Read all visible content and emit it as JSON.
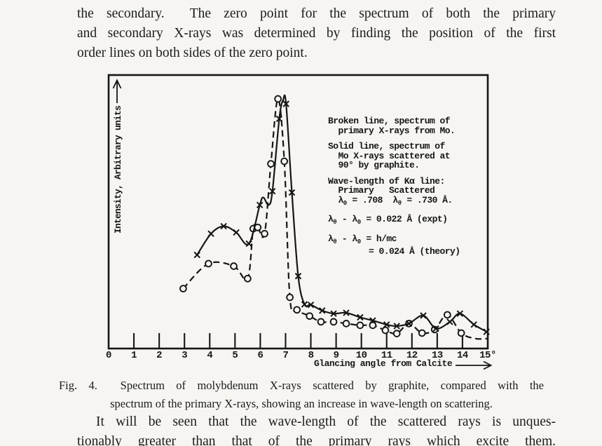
{
  "page": {
    "bg": "#f6f5f1",
    "ink": "#161616"
  },
  "paragraphs": {
    "top": [
      "the secondary.  The zero point for the spectrum of both the primary",
      "and secondary X-rays was determined by finding the position of the first",
      "order lines on both sides of the zero point."
    ],
    "bottom": [
      "It will be seen that the wave-length of the scattered rays is unques-",
      "tionably greater than that of the primary rays which excite them."
    ]
  },
  "figure": {
    "caption": [
      "Fig. 4.  Spectrum of molybdenum X-rays scattered by graphite, compared with the",
      "spectrum of the primary X-rays, showing an increase in wave-length on scattering."
    ],
    "legend_blocks": [
      [
        "Broken line, spectrum of",
        "  primary X-rays from Mo."
      ],
      [
        "Solid line, spectrum of",
        "  Mo X-rays scattered at",
        "  90° by graphite."
      ],
      [
        "Wave-length of Kα line:",
        "  Primary   Scattered",
        "  λ_{0} = .708  λ_{θ} = .730 Å."
      ],
      [
        "λ_{θ} - λ_{0} = 0.022 Å (expt)"
      ],
      [
        "λ_{θ} - λ_{0} = h/mc",
        "        = 0.024 Å (theory)"
      ]
    ]
  },
  "chart_data": {
    "type": "line",
    "title": "",
    "xlabel": "Glancing angle from Calcite",
    "ylabel": "Intensity, Arbitrary units",
    "xlim": [
      0,
      15
    ],
    "ylim": [
      0,
      105
    ],
    "grid": false,
    "x_ticks": [
      0,
      1,
      2,
      3,
      4,
      5,
      6,
      7,
      8,
      9,
      10,
      11,
      12,
      13,
      14,
      15
    ],
    "x_tick_labels": [
      "0",
      "1",
      "2",
      "3",
      "4",
      "5",
      "6",
      "7",
      "8",
      "9",
      "10",
      "11",
      "12",
      "13",
      "14",
      "15°"
    ],
    "y_ticks": "none (arbitrary units)",
    "legend_position": "text block inside plot, upper right",
    "series": [
      {
        "name": "Broken line: spectrum of primary X-rays from Mo",
        "line": "dashed",
        "marker": "circle",
        "points": [
          [
            2.95,
            24,
            1
          ],
          [
            3.95,
            34,
            1
          ],
          [
            4.95,
            33,
            1
          ],
          [
            5.5,
            28,
            1
          ],
          [
            5.72,
            48,
            1
          ],
          [
            5.9,
            48.5,
            1
          ],
          [
            6.17,
            46,
            1
          ],
          [
            6.42,
            74,
            1
          ],
          [
            6.7,
            100,
            1
          ],
          [
            6.95,
            75,
            1
          ],
          [
            7.17,
            20.5,
            1
          ],
          [
            7.45,
            15.5,
            1
          ],
          [
            7.95,
            13,
            1
          ],
          [
            8.4,
            10.7,
            1
          ],
          [
            8.9,
            10.7,
            1
          ],
          [
            9.4,
            10,
            1
          ],
          [
            9.95,
            9.3,
            1
          ],
          [
            10.45,
            9.3,
            1
          ],
          [
            10.95,
            7.3,
            1
          ],
          [
            11.4,
            6,
            1
          ],
          [
            11.88,
            10,
            1
          ],
          [
            12.4,
            6.2,
            1
          ],
          [
            12.9,
            7.6,
            1
          ],
          [
            13.4,
            13.5,
            1
          ],
          [
            13.95,
            6.2,
            1
          ],
          [
            14.5,
            4,
            0
          ],
          [
            15,
            4,
            0
          ]
        ]
      },
      {
        "name": "Solid line: spectrum of Mo X-rays scattered at 90° by graphite",
        "line": "solid",
        "marker": "x",
        "points": [
          [
            3.5,
            37.5,
            1
          ],
          [
            4.05,
            46,
            1
          ],
          [
            4.55,
            49,
            1
          ],
          [
            5.05,
            46.5,
            1
          ],
          [
            5.55,
            42,
            1
          ],
          [
            5.98,
            57.5,
            1
          ],
          [
            6.12,
            60.5,
            0
          ],
          [
            6.33,
            57.5,
            0
          ],
          [
            6.48,
            63,
            1
          ],
          [
            6.75,
            92,
            1
          ],
          [
            6.9,
            99.5,
            0
          ],
          [
            7.02,
            98,
            1
          ],
          [
            7.25,
            62.5,
            1
          ],
          [
            7.5,
            29,
            1
          ],
          [
            7.75,
            17.7,
            1
          ],
          [
            8.0,
            17.5,
            1
          ],
          [
            8.45,
            15.2,
            1
          ],
          [
            8.9,
            14,
            1
          ],
          [
            9.4,
            14.3,
            1
          ],
          [
            9.95,
            12.5,
            1
          ],
          [
            10.45,
            11.2,
            1
          ],
          [
            11.0,
            9.6,
            1
          ],
          [
            11.4,
            9,
            1
          ],
          [
            11.88,
            10,
            1
          ],
          [
            12.45,
            13.2,
            1
          ],
          [
            12.95,
            8,
            1
          ],
          [
            13.5,
            10.7,
            1
          ],
          [
            13.9,
            14,
            1
          ],
          [
            14.45,
            9.6,
            1
          ],
          [
            14.95,
            6.7,
            1
          ],
          [
            15.0,
            5.8,
            0
          ]
        ]
      }
    ]
  }
}
